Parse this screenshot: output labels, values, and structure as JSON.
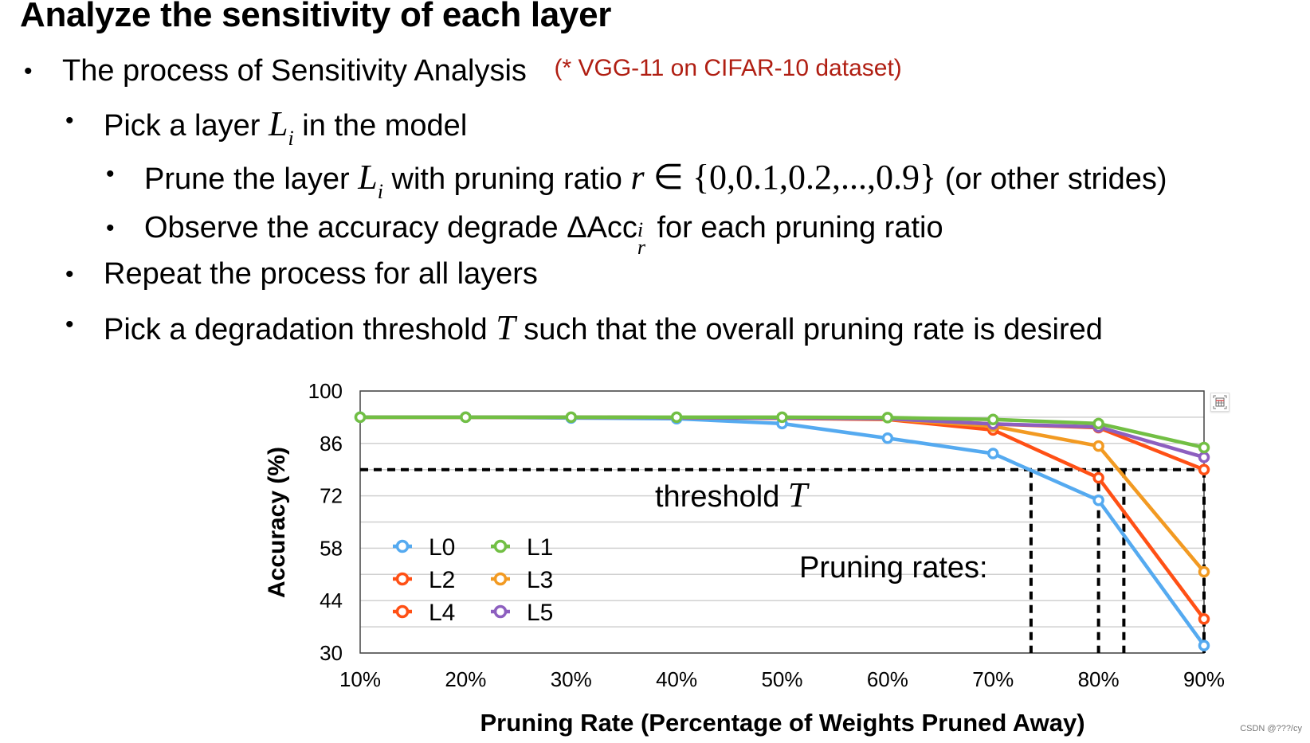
{
  "slide": {
    "title": "Analyze the sensitivity of each layer",
    "bullets": [
      {
        "level": 1,
        "text": "The process of Sensitivity Analysis",
        "note": "(* VGG-11 on CIFAR-10 dataset)"
      },
      {
        "level": 2,
        "pre": "Pick a layer ",
        "math": "L",
        "sub": "i",
        "post": " in the model"
      },
      {
        "level": 3,
        "pre": "Prune the layer ",
        "math": "L",
        "sub": "i",
        "mid": " with pruning ratio ",
        "math2": "r",
        "set": " ∈ {0,0.1,0.2,...,0.9}",
        "post": " (or other strides)"
      },
      {
        "level": 3,
        "pre": "Observe the accuracy degrade  ",
        "math": "ΔAcc",
        "sup": "i",
        "sub": "r",
        "post": " for each pruning ratio"
      },
      {
        "level": 2,
        "text": "Repeat the process for all layers"
      },
      {
        "level": 2,
        "pre": "Pick a degradation threshold ",
        "math": "T",
        "post": " such that the overall pruning rate is desired"
      }
    ],
    "bullet_glyph": "•",
    "watermark": "CSDN @???/cy"
  },
  "colors": {
    "note_red": "#b01e12",
    "L0": "#55aaf0",
    "L1": "#72bf44",
    "L2": "#ff5015",
    "L3": "#f29a22",
    "L4": "#ff5015",
    "L5": "#8d5fbf",
    "grid": "#d0d0d0",
    "axis": "#555555"
  },
  "chart_data": {
    "type": "line",
    "title": "",
    "xlabel": "Pruning Rate (Percentage of Weights Pruned Away)",
    "ylabel": "Accuracy (%)",
    "categories": [
      "10%",
      "20%",
      "30%",
      "40%",
      "50%",
      "60%",
      "70%",
      "80%",
      "90%"
    ],
    "x": [
      10,
      20,
      30,
      40,
      50,
      60,
      70,
      80,
      90
    ],
    "y_ticks": [
      100,
      86,
      72,
      58,
      44,
      30
    ],
    "y_gridlines": [
      100,
      93,
      86,
      79,
      72,
      65,
      58,
      51,
      44,
      37,
      30
    ],
    "ylim": [
      30,
      100
    ],
    "grid": true,
    "legend_position": "lower-left inside",
    "series": [
      {
        "name": "L0",
        "values": [
          93,
          93,
          92.8,
          92.6,
          91.3,
          87.4,
          83.3,
          70.8,
          32
        ]
      },
      {
        "name": "L1",
        "values": [
          93,
          93,
          93,
          93,
          93,
          92.9,
          92.4,
          91.3,
          84.9
        ]
      },
      {
        "name": "L2",
        "values": [
          93,
          93,
          93,
          92.9,
          92.8,
          92.6,
          91.2,
          90.2,
          79
        ]
      },
      {
        "name": "L3",
        "values": [
          93,
          93,
          93,
          92.9,
          92.8,
          92.5,
          90.6,
          85.3,
          51.7
        ]
      },
      {
        "name": "L4",
        "values": [
          93,
          93,
          93,
          92.9,
          92.7,
          92.4,
          89.6,
          76.8,
          39.1
        ]
      },
      {
        "name": "L5",
        "values": [
          93,
          93,
          93,
          92.9,
          92.8,
          92.6,
          91.2,
          90.4,
          82.3
        ]
      }
    ],
    "annotations": {
      "threshold_label": "threshold ",
      "threshold_symbol": "T",
      "threshold_value": 79,
      "pruning_rates_label": "Pruning rates:",
      "pruning_rate_markers": [
        73.6,
        80,
        82.4,
        90
      ]
    }
  }
}
